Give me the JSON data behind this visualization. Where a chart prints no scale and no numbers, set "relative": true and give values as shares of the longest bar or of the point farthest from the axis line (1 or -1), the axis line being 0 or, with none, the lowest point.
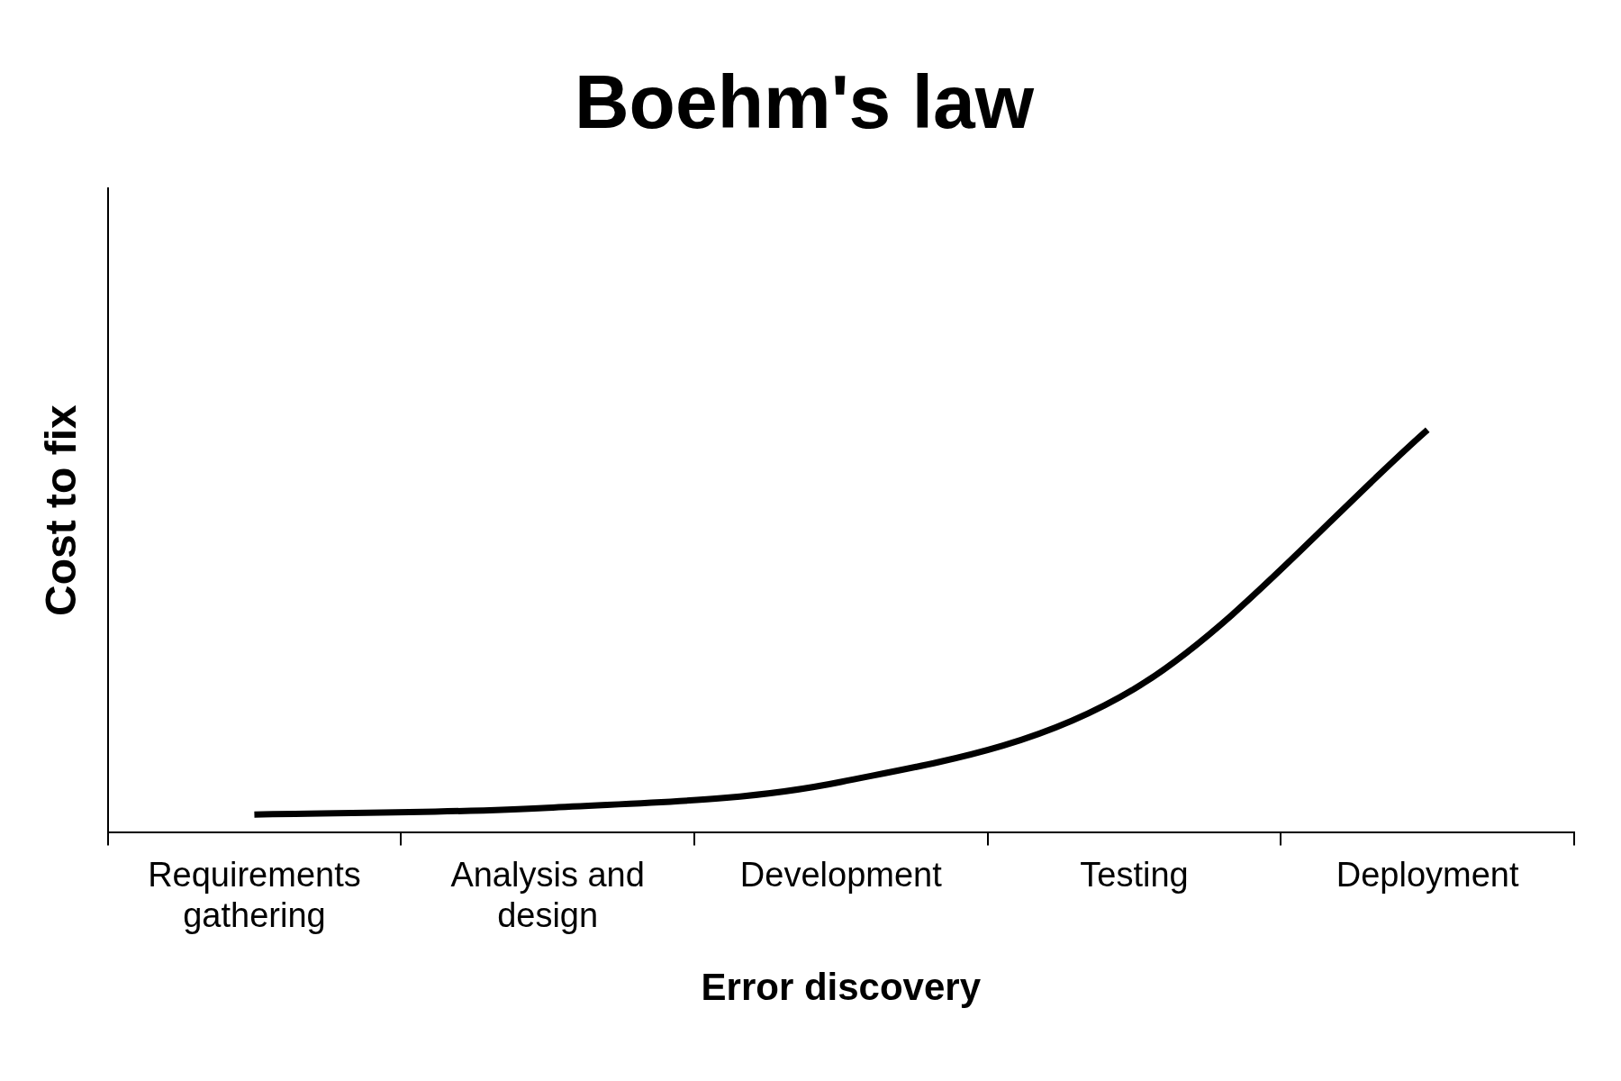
{
  "chart_data": {
    "type": "line",
    "title": "Boehm's law",
    "xlabel": "Error discovery",
    "ylabel": "Cost to fix",
    "relative": true,
    "categories": [
      "Requirements gathering",
      "Analysis and design",
      "Development",
      "Testing",
      "Deployment"
    ],
    "series": [
      {
        "color": "#000000",
        "values": [
          0.045,
          0.062,
          0.126,
          0.357,
          1
        ]
      }
    ],
    "marker": "none",
    "line_style": "solid",
    "grid": false,
    "legend": false
  }
}
